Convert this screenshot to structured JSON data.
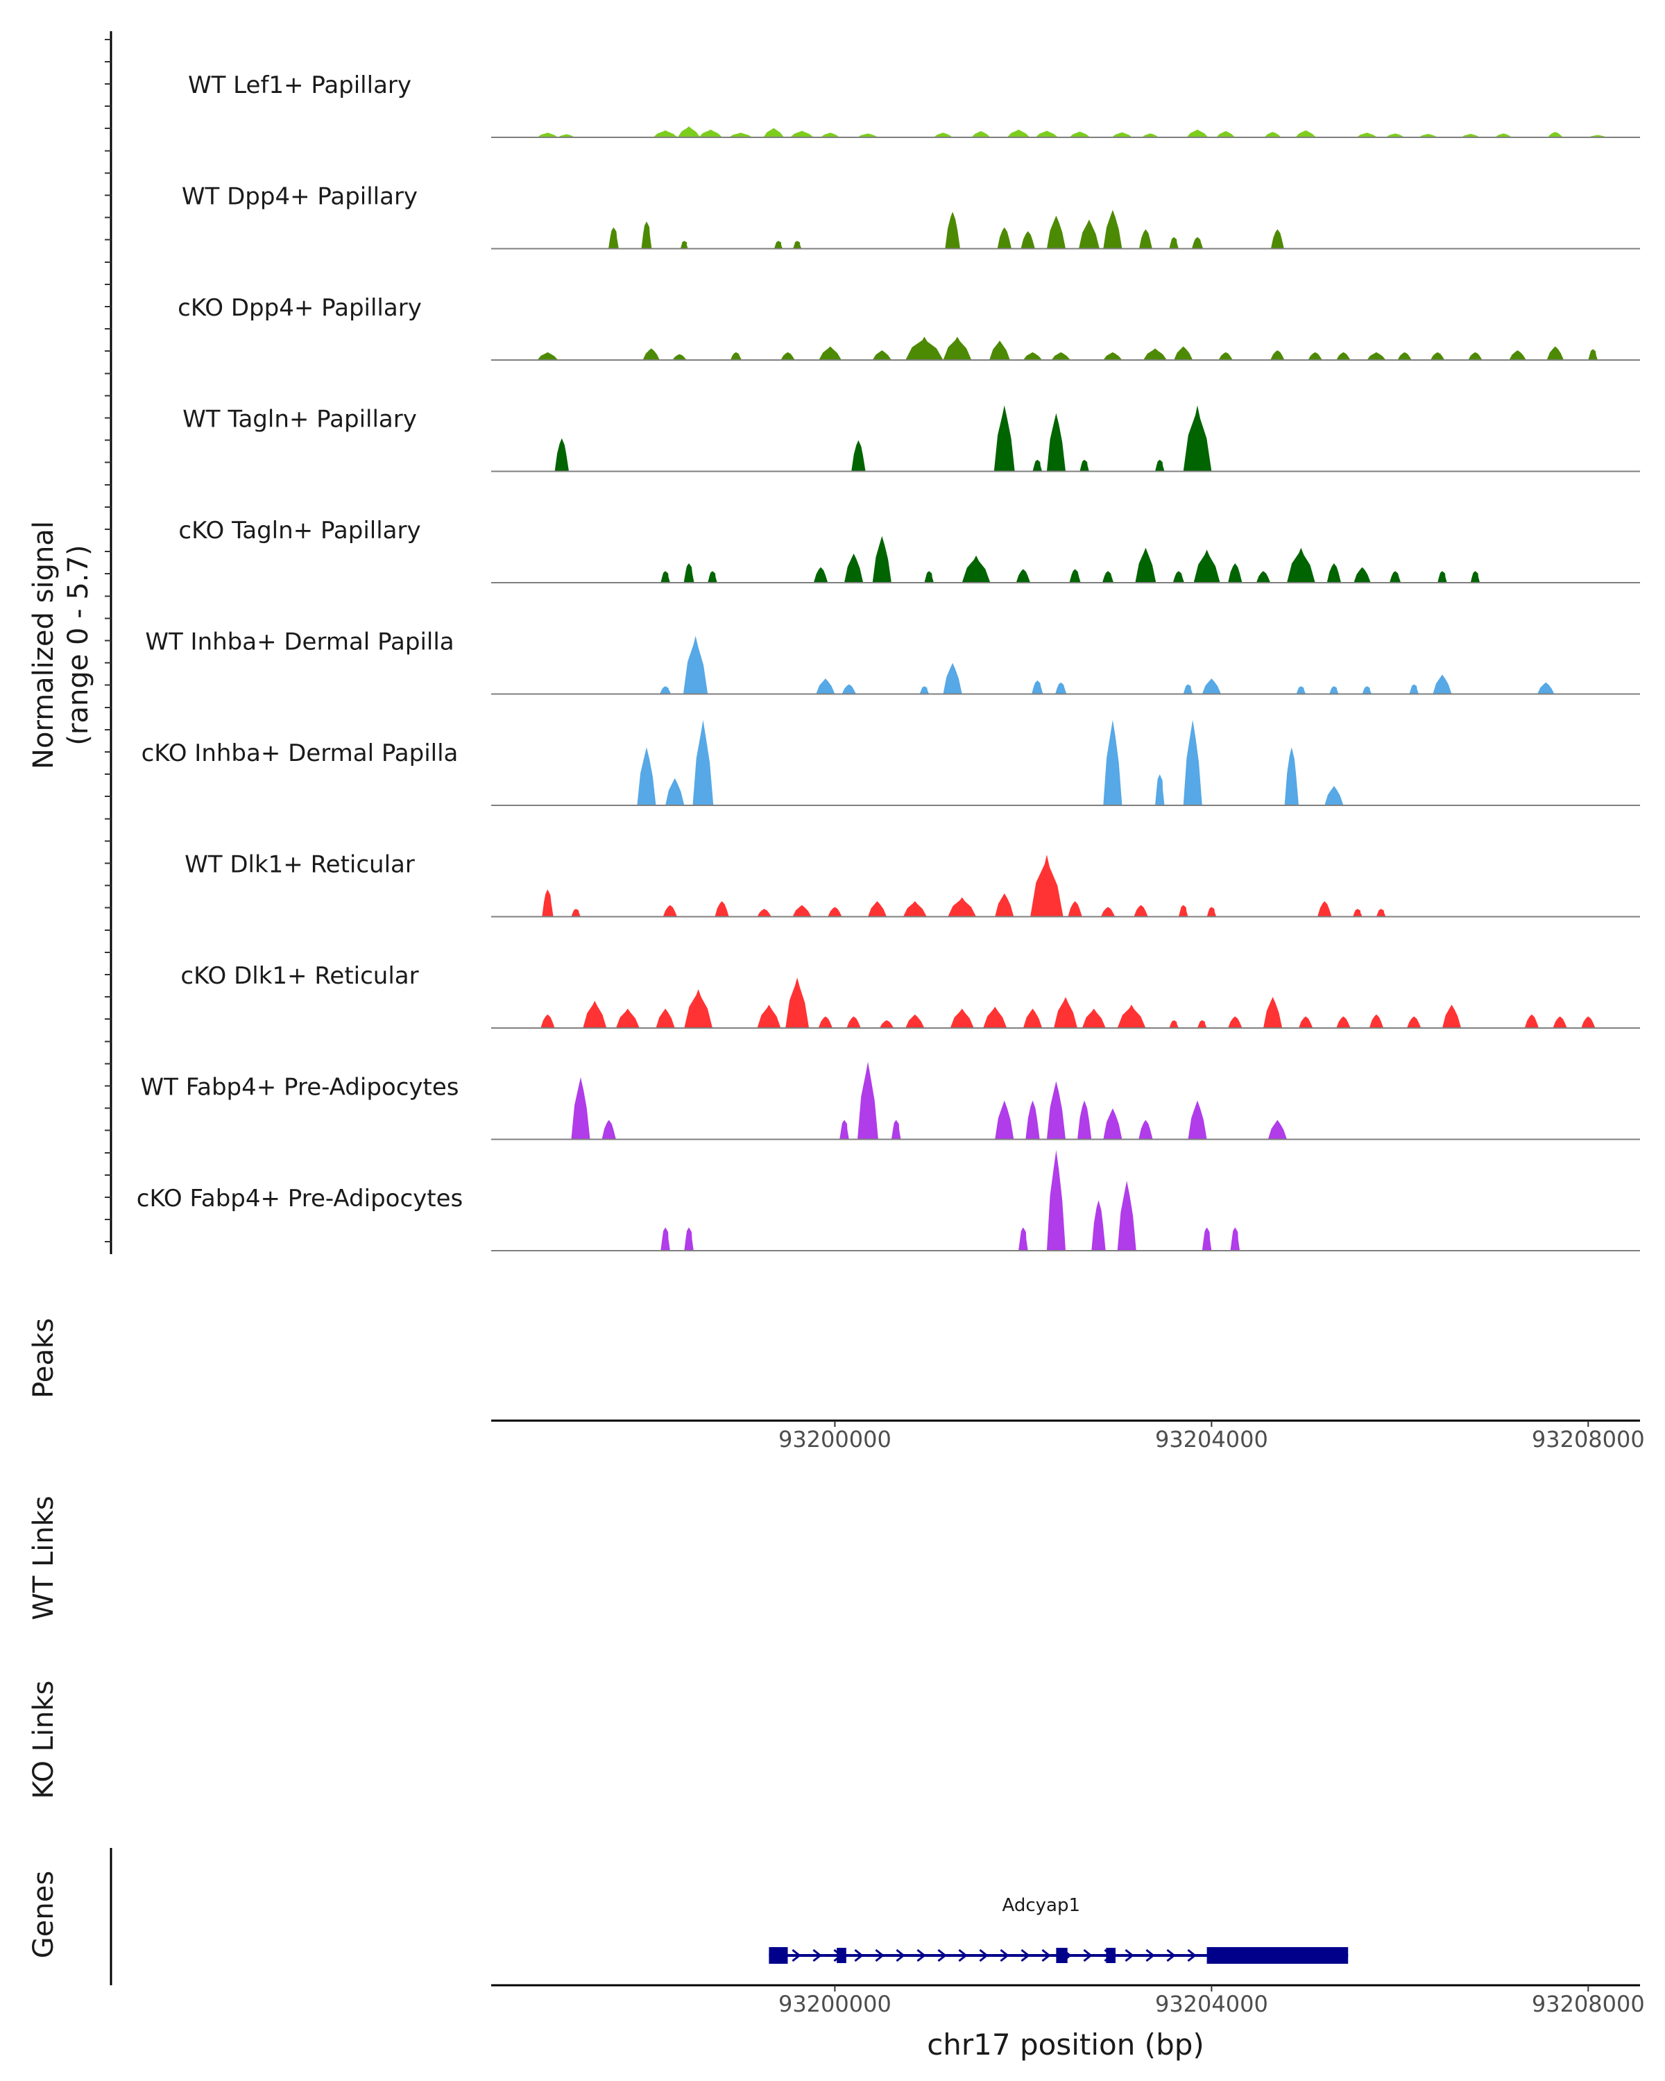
{
  "chart_data": {
    "type": "area",
    "title": "",
    "ylabel": "Normalized signal",
    "ylabel_range": "(range 0 - 5.7)",
    "y_range": [
      0,
      5.7
    ],
    "xlabel": "chr17 position (bp)",
    "x_range": [
      93196350,
      93208550
    ],
    "x_ticks": [
      93200000,
      93204000,
      93208000
    ],
    "x_tick_labels": [
      "93200000",
      "93204000",
      "93208000"
    ],
    "tracks": [
      {
        "name": "WT Lef1+ Papillary",
        "color": "#7ccd1e",
        "peaks": [
          [
            93196950,
            0.12,
            220
          ],
          [
            93197150,
            0.08,
            180
          ],
          [
            93198200,
            0.18,
            260
          ],
          [
            93198450,
            0.28,
            240
          ],
          [
            93198680,
            0.2,
            250
          ],
          [
            93199000,
            0.12,
            250
          ],
          [
            93199350,
            0.24,
            220
          ],
          [
            93199650,
            0.17,
            250
          ],
          [
            93199950,
            0.12,
            200
          ],
          [
            93200350,
            0.1,
            220
          ],
          [
            93201150,
            0.12,
            200
          ],
          [
            93201550,
            0.16,
            200
          ],
          [
            93201950,
            0.2,
            240
          ],
          [
            93202250,
            0.17,
            240
          ],
          [
            93202600,
            0.15,
            220
          ],
          [
            93203050,
            0.13,
            220
          ],
          [
            93203350,
            0.1,
            180
          ],
          [
            93203850,
            0.2,
            230
          ],
          [
            93204150,
            0.16,
            200
          ],
          [
            93204650,
            0.14,
            180
          ],
          [
            93205000,
            0.18,
            220
          ],
          [
            93205650,
            0.12,
            220
          ],
          [
            93205950,
            0.1,
            200
          ],
          [
            93206300,
            0.09,
            200
          ],
          [
            93206750,
            0.09,
            200
          ],
          [
            93207100,
            0.1,
            180
          ],
          [
            93207650,
            0.14,
            160
          ],
          [
            93208100,
            0.06,
            200
          ]
        ]
      },
      {
        "name": "WT Dpp4+ Papillary",
        "color": "#4d8a03",
        "peaks": [
          [
            93197650,
            0.55,
            110
          ],
          [
            93198000,
            0.7,
            110
          ],
          [
            93198400,
            0.2,
            80
          ],
          [
            93199400,
            0.2,
            90
          ],
          [
            93199600,
            0.2,
            90
          ],
          [
            93201250,
            0.95,
            160
          ],
          [
            93201800,
            0.55,
            150
          ],
          [
            93202050,
            0.45,
            150
          ],
          [
            93202350,
            0.85,
            200
          ],
          [
            93202700,
            0.75,
            220
          ],
          [
            93202950,
            1.0,
            200
          ],
          [
            93203300,
            0.5,
            140
          ],
          [
            93203600,
            0.3,
            100
          ],
          [
            93203850,
            0.3,
            120
          ],
          [
            93204700,
            0.5,
            140
          ]
        ]
      },
      {
        "name": "cKO Dpp4+ Papillary",
        "color": "#4d8a03",
        "peaks": [
          [
            93196950,
            0.2,
            220
          ],
          [
            93198050,
            0.3,
            180
          ],
          [
            93198350,
            0.15,
            150
          ],
          [
            93198950,
            0.2,
            120
          ],
          [
            93199500,
            0.2,
            150
          ],
          [
            93199950,
            0.35,
            240
          ],
          [
            93200500,
            0.25,
            200
          ],
          [
            93200950,
            0.6,
            400
          ],
          [
            93201300,
            0.6,
            300
          ],
          [
            93201750,
            0.5,
            220
          ],
          [
            93202100,
            0.2,
            200
          ],
          [
            93202400,
            0.2,
            200
          ],
          [
            93202950,
            0.2,
            200
          ],
          [
            93203400,
            0.3,
            250
          ],
          [
            93203700,
            0.35,
            200
          ],
          [
            93204150,
            0.2,
            150
          ],
          [
            93204700,
            0.25,
            150
          ],
          [
            93205100,
            0.2,
            150
          ],
          [
            93205400,
            0.2,
            150
          ],
          [
            93205750,
            0.2,
            200
          ],
          [
            93206050,
            0.2,
            150
          ],
          [
            93206400,
            0.2,
            150
          ],
          [
            93206800,
            0.2,
            150
          ],
          [
            93207250,
            0.25,
            180
          ],
          [
            93207650,
            0.35,
            180
          ],
          [
            93208050,
            0.28,
            100
          ]
        ]
      },
      {
        "name": "WT Tagln+ Papillary",
        "color": "#006400",
        "peaks": [
          [
            93197100,
            0.85,
            150
          ],
          [
            93200250,
            0.8,
            150
          ],
          [
            93201800,
            1.7,
            220
          ],
          [
            93202150,
            0.3,
            100
          ],
          [
            93202350,
            1.5,
            200
          ],
          [
            93202650,
            0.3,
            100
          ],
          [
            93203450,
            0.3,
            100
          ],
          [
            93203850,
            1.7,
            300
          ]
        ]
      },
      {
        "name": "cKO Tagln+ Papillary",
        "color": "#006400",
        "peaks": [
          [
            93198200,
            0.3,
            100
          ],
          [
            93198450,
            0.5,
            110
          ],
          [
            93198700,
            0.3,
            100
          ],
          [
            93199850,
            0.4,
            150
          ],
          [
            93200200,
            0.75,
            200
          ],
          [
            93200500,
            1.2,
            200
          ],
          [
            93201000,
            0.3,
            100
          ],
          [
            93201500,
            0.7,
            300
          ],
          [
            93202000,
            0.35,
            150
          ],
          [
            93202550,
            0.35,
            120
          ],
          [
            93202900,
            0.3,
            120
          ],
          [
            93203300,
            0.9,
            220
          ],
          [
            93203650,
            0.3,
            120
          ],
          [
            93203950,
            0.85,
            280
          ],
          [
            93204250,
            0.5,
            150
          ],
          [
            93204550,
            0.3,
            150
          ],
          [
            93204950,
            0.9,
            300
          ],
          [
            93205300,
            0.5,
            150
          ],
          [
            93205600,
            0.4,
            180
          ],
          [
            93205950,
            0.3,
            120
          ],
          [
            93206450,
            0.3,
            100
          ],
          [
            93206800,
            0.3,
            100
          ]
        ]
      },
      {
        "name": "WT Inhba+ Dermal Papilla",
        "color": "#56a8e6",
        "peaks": [
          [
            93198200,
            0.2,
            120
          ],
          [
            93198520,
            1.5,
            260
          ],
          [
            93199900,
            0.4,
            200
          ],
          [
            93200150,
            0.25,
            150
          ],
          [
            93200950,
            0.2,
            100
          ],
          [
            93201250,
            0.8,
            200
          ],
          [
            93202150,
            0.35,
            120
          ],
          [
            93202400,
            0.3,
            120
          ],
          [
            93203750,
            0.25,
            100
          ],
          [
            93204000,
            0.4,
            200
          ],
          [
            93204950,
            0.2,
            100
          ],
          [
            93205300,
            0.2,
            100
          ],
          [
            93205650,
            0.2,
            100
          ],
          [
            93206150,
            0.25,
            100
          ],
          [
            93206450,
            0.5,
            200
          ],
          [
            93207550,
            0.3,
            180
          ]
        ]
      },
      {
        "name": "cKO Inhba+ Dermal Papilla",
        "color": "#56a8e6",
        "peaks": [
          [
            93198000,
            1.5,
            200
          ],
          [
            93198300,
            0.7,
            200
          ],
          [
            93198600,
            2.2,
            220
          ],
          [
            93202950,
            2.2,
            200
          ],
          [
            93203450,
            0.8,
            100
          ],
          [
            93203800,
            2.2,
            200
          ],
          [
            93204850,
            1.5,
            150
          ],
          [
            93205300,
            0.5,
            200
          ]
        ]
      },
      {
        "name": "WT Dlk1+ Reticular",
        "color": "#ff3333",
        "peaks": [
          [
            93196950,
            0.7,
            120
          ],
          [
            93197250,
            0.2,
            100
          ],
          [
            93198250,
            0.3,
            150
          ],
          [
            93198800,
            0.4,
            150
          ],
          [
            93199250,
            0.2,
            150
          ],
          [
            93199650,
            0.3,
            200
          ],
          [
            93200000,
            0.25,
            150
          ],
          [
            93200450,
            0.4,
            200
          ],
          [
            93200850,
            0.4,
            250
          ],
          [
            93201350,
            0.5,
            300
          ],
          [
            93201800,
            0.6,
            200
          ],
          [
            93202250,
            1.6,
            350
          ],
          [
            93202550,
            0.4,
            150
          ],
          [
            93202900,
            0.25,
            150
          ],
          [
            93203250,
            0.3,
            150
          ],
          [
            93203700,
            0.3,
            100
          ],
          [
            93204000,
            0.25,
            100
          ],
          [
            93205200,
            0.4,
            150
          ],
          [
            93205550,
            0.2,
            100
          ],
          [
            93205800,
            0.2,
            100
          ]
        ]
      },
      {
        "name": "cKO Dlk1+ Reticular",
        "color": "#ff3333",
        "peaks": [
          [
            93196950,
            0.35,
            150
          ],
          [
            93197450,
            0.7,
            250
          ],
          [
            93197800,
            0.5,
            250
          ],
          [
            93198200,
            0.5,
            200
          ],
          [
            93198550,
            1.0,
            300
          ],
          [
            93199300,
            0.6,
            250
          ],
          [
            93199600,
            1.3,
            250
          ],
          [
            93199900,
            0.3,
            150
          ],
          [
            93200200,
            0.3,
            150
          ],
          [
            93200550,
            0.2,
            150
          ],
          [
            93200850,
            0.35,
            200
          ],
          [
            93201350,
            0.5,
            250
          ],
          [
            93201700,
            0.55,
            250
          ],
          [
            93202100,
            0.5,
            200
          ],
          [
            93202450,
            0.8,
            250
          ],
          [
            93202750,
            0.5,
            250
          ],
          [
            93203150,
            0.6,
            300
          ],
          [
            93203600,
            0.2,
            100
          ],
          [
            93203900,
            0.2,
            100
          ],
          [
            93204250,
            0.3,
            150
          ],
          [
            93204650,
            0.8,
            200
          ],
          [
            93205000,
            0.3,
            150
          ],
          [
            93205400,
            0.3,
            150
          ],
          [
            93205750,
            0.35,
            150
          ],
          [
            93206150,
            0.3,
            150
          ],
          [
            93206550,
            0.6,
            200
          ],
          [
            93207400,
            0.35,
            150
          ],
          [
            93207700,
            0.3,
            150
          ],
          [
            93208000,
            0.3,
            150
          ]
        ]
      },
      {
        "name": "WT Fabp4+ Pre-Adipocytes",
        "color": "#b03cea",
        "peaks": [
          [
            93197300,
            1.6,
            200
          ],
          [
            93197600,
            0.5,
            150
          ],
          [
            93200100,
            0.5,
            100
          ],
          [
            93200350,
            2.0,
            220
          ],
          [
            93200650,
            0.5,
            100
          ],
          [
            93201800,
            1.0,
            200
          ],
          [
            93202100,
            1.0,
            150
          ],
          [
            93202350,
            1.5,
            200
          ],
          [
            93202650,
            1.0,
            150
          ],
          [
            93202950,
            0.8,
            200
          ],
          [
            93203300,
            0.5,
            150
          ],
          [
            93203850,
            1.0,
            200
          ],
          [
            93204700,
            0.5,
            200
          ]
        ]
      },
      {
        "name": "cKO Fabp4+ Pre-Adipocytes",
        "color": "#b03cea",
        "peaks": [
          [
            93198200,
            0.6,
            100
          ],
          [
            93198450,
            0.6,
            100
          ],
          [
            93202000,
            0.6,
            100
          ],
          [
            93202350,
            2.6,
            200
          ],
          [
            93202800,
            1.3,
            150
          ],
          [
            93203100,
            1.8,
            200
          ],
          [
            93203950,
            0.6,
            100
          ],
          [
            93204250,
            0.6,
            100
          ]
        ]
      }
    ],
    "panels": [
      "Peaks",
      "WT Links",
      "KO Links",
      "Genes"
    ],
    "gene": {
      "name": "Adcyap1",
      "start": 93199300,
      "end": 93205450,
      "strand": "+",
      "exons": [
        [
          93199300,
          93199500
        ],
        [
          93200020,
          93200120
        ],
        [
          93202350,
          93202470
        ],
        [
          93202880,
          93202980
        ],
        [
          93203950,
          93205450
        ]
      ]
    }
  }
}
